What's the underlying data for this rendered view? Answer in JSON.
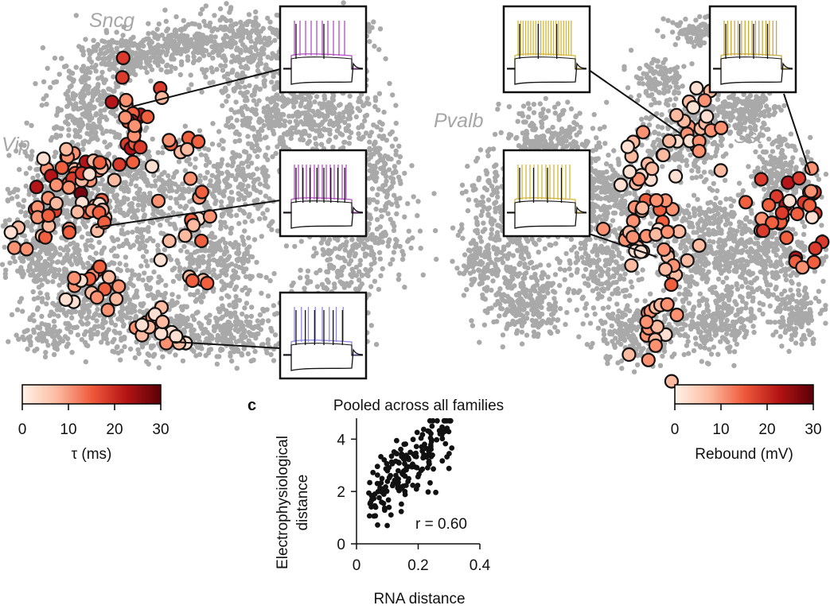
{
  "left_panel": {
    "cluster_labels": [
      "Sncg",
      "Vip"
    ],
    "colorbar": {
      "label": "τ (ms)",
      "ticks": [
        "0",
        "10",
        "20",
        "30"
      ],
      "min": 0,
      "max": 30,
      "colors": [
        "#fff2e8",
        "#fcbba1",
        "#ef5a3c",
        "#b41414",
        "#5a0008"
      ]
    },
    "trace_colors": [
      "#b24fc0",
      "#b24fc0",
      "#8f86e6"
    ]
  },
  "right_panel": {
    "cluster_labels": [
      "Pvalb",
      "Sst"
    ],
    "colorbar": {
      "label": "Rebound (mV)",
      "ticks": [
        "0",
        "10",
        "20",
        "30"
      ],
      "min": 0,
      "max": 30,
      "colors": [
        "#fff2e8",
        "#fcbba1",
        "#ef5a3c",
        "#b41414",
        "#5a0008"
      ]
    },
    "trace_colors": [
      "#d4b73a",
      "#d4b73a",
      "#c9a83a"
    ]
  },
  "panel_c": {
    "letter": "c",
    "title": "Pooled across all families",
    "annotation": "r = 0.60",
    "chart_data": {
      "type": "scatter",
      "title": "Pooled across all families",
      "xlabel": "RNA distance",
      "ylabel_lines": [
        "Electrophysiological",
        "distance"
      ],
      "xlim": [
        0,
        0.4
      ],
      "ylim": [
        0,
        4.8
      ],
      "xticks": [
        "0",
        "0.2",
        "0.4"
      ],
      "yticks": [
        "0",
        "2",
        "4"
      ],
      "r": 0.6,
      "point_count": 180,
      "x_range": [
        0.04,
        0.31
      ],
      "y_range": [
        0.7,
        4.7
      ]
    }
  }
}
